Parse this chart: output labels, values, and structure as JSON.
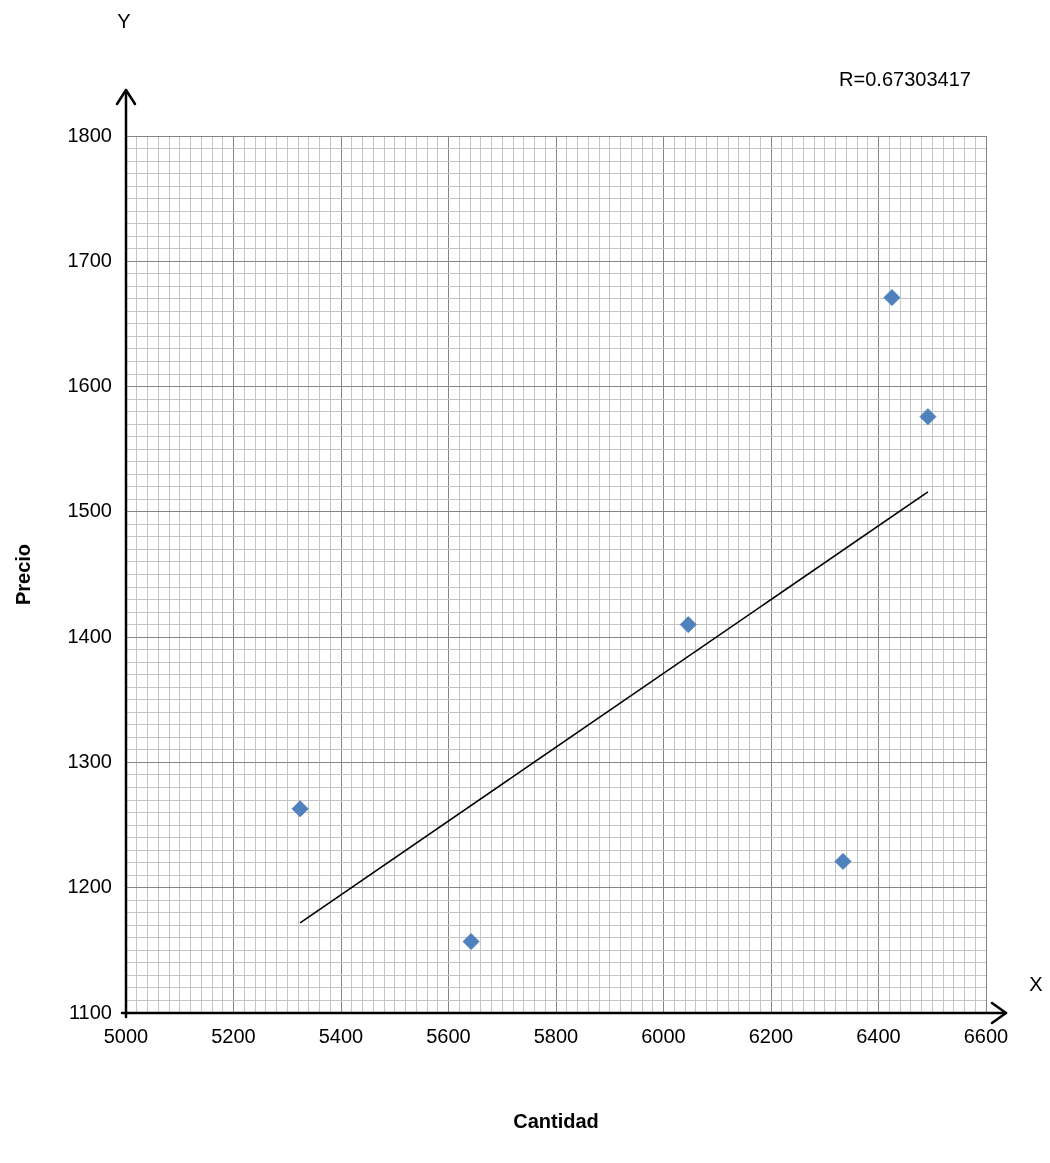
{
  "chart_data": {
    "type": "scatter",
    "xlabel": "Cantidad",
    "ylabel": "Precio",
    "annotations": [
      "R=0.67303417",
      "X",
      "Y"
    ],
    "marker": "diamond",
    "grid": true,
    "legend": false,
    "xlim": [
      5000,
      6600
    ],
    "ylim": [
      1100,
      1800
    ],
    "xticks": [
      5000,
      {
        "value": 5020,
        "label": null
      },
      {
        "value": 5040,
        "label": null
      },
      {
        "value": 5060,
        "label": null
      },
      {
        "value": 5080,
        "label": null
      },
      {
        "value": 5100,
        "label": null
      },
      {
        "value": 5120,
        "label": null
      },
      {
        "value": 5140,
        "label": null
      },
      {
        "value": 5160,
        "label": null
      },
      {
        "value": 5180,
        "label": null
      },
      5200,
      {
        "value": 5220,
        "label": null
      },
      {
        "value": 5240,
        "label": null
      },
      {
        "value": 5260,
        "label": null
      },
      {
        "value": 5280,
        "label": null
      },
      {
        "value": 5300,
        "label": null
      },
      {
        "value": 5320,
        "label": null
      },
      {
        "value": 5340,
        "label": null
      },
      {
        "value": 5360,
        "label": null
      },
      {
        "value": 5380,
        "label": null
      },
      5400,
      {
        "value": 5420,
        "label": null
      },
      {
        "value": 5440,
        "label": null
      },
      {
        "value": 5460,
        "label": null
      },
      {
        "value": 5480,
        "label": null
      },
      {
        "value": 5500,
        "label": null
      },
      {
        "value": 5520,
        "label": null
      },
      {
        "value": 5540,
        "label": null
      },
      {
        "value": 5560,
        "label": null
      },
      {
        "value": 5580,
        "label": null
      },
      5600,
      {
        "value": 5620,
        "label": null
      },
      {
        "value": 5640,
        "label": null
      },
      {
        "value": 5660,
        "label": null
      },
      {
        "value": 5680,
        "label": null
      },
      {
        "value": 5700,
        "label": null
      },
      {
        "value": 5720,
        "label": null
      },
      {
        "value": 5740,
        "label": null
      },
      {
        "value": 5760,
        "label": null
      },
      {
        "value": 5780,
        "label": null
      },
      5800,
      {
        "value": 5820,
        "label": null
      },
      {
        "value": 5840,
        "label": null
      },
      {
        "value": 5860,
        "label": null
      },
      {
        "value": 5880,
        "label": null
      },
      {
        "value": 5900,
        "label": null
      },
      {
        "value": 5920,
        "label": null
      },
      {
        "value": 5940,
        "label": null
      },
      {
        "value": 5960,
        "label": null
      },
      {
        "value": 5980,
        "label": null
      },
      6000,
      {
        "value": 6020,
        "label": null
      },
      {
        "value": 6040,
        "label": null
      },
      {
        "value": 6060,
        "label": null
      },
      {
        "value": 6080,
        "label": null
      },
      {
        "value": 6100,
        "label": null
      },
      {
        "value": 6120,
        "label": null
      },
      {
        "value": 6140,
        "label": null
      },
      {
        "value": 6160,
        "label": null
      },
      {
        "value": 6180,
        "label": null
      },
      6200,
      {
        "value": 6220,
        "label": null
      },
      {
        "value": 6240,
        "label": null
      },
      {
        "value": 6260,
        "label": null
      },
      {
        "value": 6280,
        "label": null
      },
      {
        "value": 6300,
        "label": null
      },
      {
        "value": 6320,
        "label": null
      },
      {
        "value": 6340,
        "label": null
      },
      {
        "value": 6360,
        "label": null
      },
      {
        "value": 6380,
        "label": null
      },
      6400,
      {
        "value": 6420,
        "label": null
      },
      {
        "value": 6440,
        "label": null
      },
      {
        "value": 6460,
        "label": null
      },
      {
        "value": 6480,
        "label": null
      },
      {
        "value": 6500,
        "label": null
      },
      {
        "value": 6520,
        "label": null
      },
      {
        "value": 6540,
        "label": null
      },
      {
        "value": 6560,
        "label": null
      },
      {
        "value": 6580,
        "label": null
      },
      6600
    ],
    "yticks": [
      1100,
      {
        "value": 1110,
        "label": null
      },
      {
        "value": 1120,
        "label": null
      },
      {
        "value": 1130,
        "label": null
      },
      {
        "value": 1140,
        "label": null
      },
      {
        "value": 1150,
        "label": null
      },
      {
        "value": 1160,
        "label": null
      },
      {
        "value": 1170,
        "label": null
      },
      {
        "value": 1180,
        "label": null
      },
      {
        "value": 1190,
        "label": null
      },
      1200,
      {
        "value": 1210,
        "label": null
      },
      {
        "value": 1220,
        "label": null
      },
      {
        "value": 1230,
        "label": null
      },
      {
        "value": 1240,
        "label": null
      },
      {
        "value": 1250,
        "label": null
      },
      {
        "value": 1260,
        "label": null
      },
      {
        "value": 1270,
        "label": null
      },
      {
        "value": 1280,
        "label": null
      },
      {
        "value": 1290,
        "label": null
      },
      1300,
      {
        "value": 1310,
        "label": null
      },
      {
        "value": 1320,
        "label": null
      },
      {
        "value": 1330,
        "label": null
      },
      {
        "value": 1340,
        "label": null
      },
      {
        "value": 1350,
        "label": null
      },
      {
        "value": 1360,
        "label": null
      },
      {
        "value": 1370,
        "label": null
      },
      {
        "value": 1380,
        "label": null
      },
      {
        "value": 1390,
        "label": null
      },
      1400,
      {
        "value": 1410,
        "label": null
      },
      {
        "value": 1420,
        "label": null
      },
      {
        "value": 1430,
        "label": null
      },
      {
        "value": 1440,
        "label": null
      },
      {
        "value": 1450,
        "label": null
      },
      {
        "value": 1460,
        "label": null
      },
      {
        "value": 1470,
        "label": null
      },
      {
        "value": 1480,
        "label": null
      },
      {
        "value": 1490,
        "label": null
      },
      1500,
      {
        "value": 1510,
        "label": null
      },
      {
        "value": 1520,
        "label": null
      },
      {
        "value": 1530,
        "label": null
      },
      {
        "value": 1540,
        "label": null
      },
      {
        "value": 1550,
        "label": null
      },
      {
        "value": 1560,
        "label": null
      },
      {
        "value": 1570,
        "label": null
      },
      {
        "value": 1580,
        "label": null
      },
      {
        "value": 1590,
        "label": null
      },
      1600,
      {
        "value": 1610,
        "label": null
      },
      {
        "value": 1620,
        "label": null
      },
      {
        "value": 1630,
        "label": null
      },
      {
        "value": 1640,
        "label": null
      },
      {
        "value": 1650,
        "label": null
      },
      {
        "value": 1660,
        "label": null
      },
      {
        "value": 1670,
        "label": null
      },
      {
        "value": 1680,
        "label": null
      },
      {
        "value": 1690,
        "label": null
      },
      1700,
      {
        "value": 1710,
        "label": null
      },
      {
        "value": 1720,
        "label": null
      },
      {
        "value": 1730,
        "label": null
      },
      {
        "value": 1740,
        "label": null
      },
      {
        "value": 1750,
        "label": null
      },
      {
        "value": 1760,
        "label": null
      },
      {
        "value": 1770,
        "label": null
      },
      {
        "value": 1780,
        "label": null
      },
      {
        "value": 1790,
        "label": null
      },
      1800
    ],
    "series": [
      {
        "color": "#4f81bd",
        "x": [
          5324,
          5642,
          6046,
          6334,
          6425,
          6492
        ],
        "values": [
          1263,
          1157,
          1410,
          1221,
          1671,
          1576
        ]
      },
      {
        "type": "line",
        "color": "#000000",
        "marker": "none",
        "x": [
          5324,
          6492
        ],
        "values": [
          1172,
          1516
        ]
      }
    ]
  }
}
